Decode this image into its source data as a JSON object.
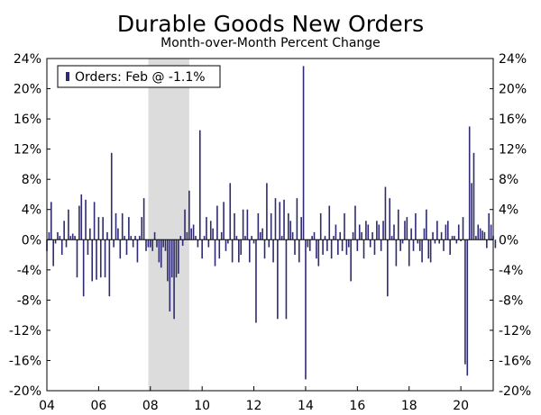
{
  "chart_data": {
    "type": "bar",
    "title": "Durable Goods New Orders",
    "subtitle": "Month-over-Month Percent Change",
    "xlabel": "",
    "ylabel": "",
    "ylim": [
      -20,
      24
    ],
    "yticks": [
      "24%",
      "20%",
      "16%",
      "12%",
      "8%",
      "4%",
      "0%",
      "-4%",
      "-8%",
      "-12%",
      "-16%",
      "-20%"
    ],
    "ytick_values": [
      24,
      20,
      16,
      12,
      8,
      4,
      0,
      -4,
      -8,
      -12,
      -16,
      -20
    ],
    "xticks": [
      "04",
      "06",
      "08",
      "10",
      "12",
      "14",
      "16",
      "18",
      "20"
    ],
    "xtick_years": [
      2004,
      2006,
      2008,
      2010,
      2012,
      2014,
      2016,
      2018,
      2020
    ],
    "xlim": [
      2004.0,
      2021.25
    ],
    "shaded_region": [
      2007.92,
      2009.5
    ],
    "series_color": "#2e2a72",
    "shade_color": "#dcdcdc",
    "legend": {
      "label": "Orders: Feb @ -1.1%",
      "position": "top-left"
    },
    "series": [
      {
        "name": "Orders",
        "start": "2004-01",
        "values": [
          -1.5,
          1.0,
          5.0,
          -3.5,
          -0.5,
          1.0,
          0.5,
          -2.0,
          2.5,
          -1.0,
          4.0,
          0.5,
          0.8,
          0.5,
          -5.0,
          4.5,
          6.0,
          -7.5,
          5.3,
          -2.0,
          1.5,
          -5.5,
          5.0,
          -5.3,
          3.0,
          -5.0,
          3.0,
          -5.0,
          1.0,
          -7.5,
          11.5,
          -1.0,
          3.5,
          1.5,
          -2.5,
          3.5,
          0.5,
          -2.0,
          3.0,
          0.5,
          -1.0,
          0.5,
          -3.0,
          0.5,
          3.0,
          5.5,
          -1.5,
          -1.0,
          -1.0,
          -1.5,
          1.0,
          -1.0,
          -3.0,
          -3.7,
          -1.0,
          -1.5,
          -5.5,
          -9.5,
          -5.0,
          -10.5,
          -5.0,
          -4.5,
          0.5,
          -0.8,
          4.0,
          1.0,
          6.5,
          1.5,
          2.0,
          0.5,
          -1.0,
          14.5,
          -2.5,
          0.5,
          3.0,
          -1.0,
          2.5,
          1.5,
          -3.5,
          4.5,
          -2.5,
          1.0,
          5.0,
          -1.5,
          -0.5,
          7.5,
          -3.0,
          3.5,
          0.5,
          -3.0,
          -2.0,
          4.0,
          0.5,
          4.0,
          -3.0,
          0.5,
          -0.5,
          -11.0,
          3.5,
          1.0,
          1.5,
          -2.5,
          7.5,
          -1.0,
          3.5,
          -3.0,
          5.5,
          -10.5,
          5.0,
          0.5,
          5.3,
          -10.5,
          3.5,
          2.5,
          1.0,
          -2.0,
          5.5,
          -3.0,
          3.0,
          23.0,
          -18.5,
          -1.0,
          -1.5,
          0.5,
          1.0,
          -2.5,
          -3.5,
          3.5,
          -2.0,
          0.5,
          -1.5,
          4.5,
          -2.5,
          0.5,
          2.0,
          -2.0,
          1.0,
          -1.5,
          3.5,
          -2.0,
          -1.0,
          -5.5,
          1.0,
          4.5,
          -1.5,
          2.0,
          1.0,
          -2.5,
          2.5,
          2.0,
          -1.0,
          1.0,
          -2.0,
          2.5,
          2.0,
          -1.5,
          2.5,
          7.0,
          -7.5,
          5.5,
          0.5,
          2.0,
          -3.5,
          4.0,
          -1.5,
          -0.5,
          2.5,
          3.0,
          -3.5,
          1.5,
          -1.5,
          3.5,
          -0.5,
          -1.5,
          -3.0,
          1.5,
          4.0,
          -2.5,
          -3.0,
          1.0,
          -0.5,
          2.5,
          -0.5,
          1.0,
          -1.5,
          2.0,
          2.5,
          -2.0,
          0.5,
          0.5,
          -0.5,
          2.0,
          -0.2,
          3.0,
          -16.5,
          -18.0,
          15.0,
          7.5,
          11.5,
          0.5,
          2.0,
          1.5,
          1.2,
          1.0,
          -1.1,
          3.5,
          2.0,
          0.5,
          -1.1
        ]
      }
    ]
  }
}
